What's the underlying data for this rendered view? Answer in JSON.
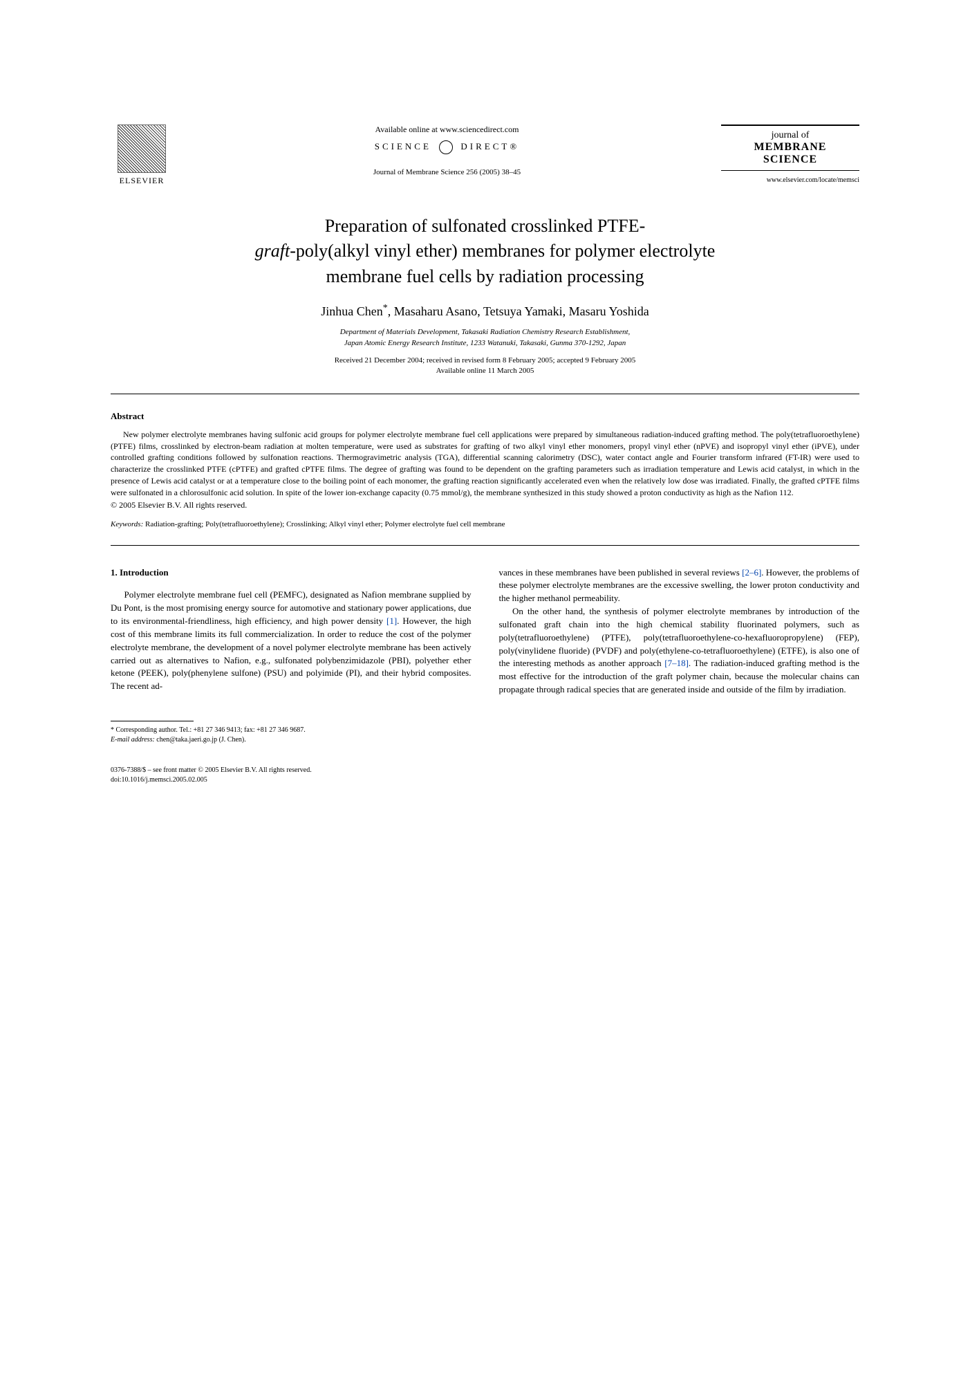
{
  "header": {
    "elsevier": "ELSEVIER",
    "available": "Available online at www.sciencedirect.com",
    "science_direct": "SCIENCE",
    "science_direct2": "DIRECT®",
    "citation": "Journal of Membrane Science 256 (2005) 38–45",
    "journal_small": "journal of",
    "journal_big1": "MEMBRANE",
    "journal_big2": "SCIENCE",
    "journal_url": "www.elsevier.com/locate/memsci"
  },
  "title": {
    "line1": "Preparation of sulfonated crosslinked PTFE-",
    "line2_italic": "graft",
    "line2_rest": "-poly(alkyl vinyl ether) membranes for polymer electrolyte",
    "line3": "membrane fuel cells by radiation processing"
  },
  "authors": "Jinhua Chen",
  "authors_rest": ", Masaharu Asano, Tetsuya Yamaki, Masaru Yoshida",
  "star": "*",
  "affiliation": {
    "line1": "Department of Materials Development, Takasaki Radiation Chemistry Research Establishment,",
    "line2": "Japan Atomic Energy Research Institute, 1233 Watanuki, Takasaki, Gunma 370-1292, Japan"
  },
  "dates": {
    "line1": "Received 21 December 2004; received in revised form 8 February 2005; accepted 9 February 2005",
    "line2": "Available online 11 March 2005"
  },
  "abstract": {
    "heading": "Abstract",
    "text": "New polymer electrolyte membranes having sulfonic acid groups for polymer electrolyte membrane fuel cell applications were prepared by simultaneous radiation-induced grafting method. The poly(tetrafluoroethylene) (PTFE) films, crosslinked by electron-beam radiation at molten temperature, were used as substrates for grafting of two alkyl vinyl ether monomers, propyl vinyl ether (nPVE) and isopropyl vinyl ether (iPVE), under controlled grafting conditions followed by sulfonation reactions. Thermogravimetric analysis (TGA), differential scanning calorimetry (DSC), water contact angle and Fourier transform infrared (FT-IR) were used to characterize the crosslinked PTFE (cPTFE) and grafted cPTFE films. The degree of grafting was found to be dependent on the grafting parameters such as irradiation temperature and Lewis acid catalyst, in which in the presence of Lewis acid catalyst or at a temperature close to the boiling point of each monomer, the grafting reaction significantly accelerated even when the relatively low dose was irradiated. Finally, the grafted cPTFE films were sulfonated in a chlorosulfonic acid solution. In spite of the lower ion-exchange capacity (0.75 mmol/g), the membrane synthesized in this study showed a proton conductivity as high as the Nafion 112.",
    "copyright": "© 2005 Elsevier B.V. All rights reserved."
  },
  "keywords": {
    "label": "Keywords:",
    "text": " Radiation-grafting; Poly(tetrafluoroethylene); Crosslinking; Alkyl vinyl ether; Polymer electrolyte fuel cell membrane"
  },
  "section1": {
    "heading": "1. Introduction",
    "col1_p1a": "Polymer electrolyte membrane fuel cell (PEMFC), designated as Nafion membrane supplied by Du Pont, is the most promising energy source for automotive and stationary power applications, due to its environmental-friendliness, high efficiency, and high power density ",
    "col1_ref1": "[1]",
    "col1_p1b": ". However, the high cost of this membrane limits its full commercialization. In order to reduce the cost of the polymer electrolyte membrane, the development of a novel polymer electrolyte membrane has been actively carried out as alternatives to Nafion, e.g., sulfonated polybenzimidazole (PBI), polyether ether ketone (PEEK), poly(phenylene sulfone) (PSU) and polyimide (PI), and their hybrid composites. The recent ad-",
    "col2_p1a": "vances in these membranes have been published in several reviews ",
    "col2_ref1": "[2–6]",
    "col2_p1b": ". However, the problems of these polymer electrolyte membranes are the excessive swelling, the lower proton conductivity and the higher methanol permeability.",
    "col2_p2a": "On the other hand, the synthesis of polymer electrolyte membranes by introduction of the sulfonated graft chain into the high chemical stability fluorinated polymers, such as poly(tetrafluoroethylene) (PTFE), poly(tetrafluoroethylene-",
    "col2_p2_italic": "co",
    "col2_p2b": "-hexafluoropropylene) (FEP), poly(vinylidene fluoride) (PVDF) and poly(ethylene-",
    "col2_p2_italic2": "co",
    "col2_p2c": "-tetrafluoroethylene) (ETFE), is also one of the interesting methods as another approach ",
    "col2_ref2": "[7–18]",
    "col2_p2d": ". The radiation-induced grafting method is the most effective for the introduction of the graft polymer chain, because the molecular chains can propagate through radical species that are generated inside and outside of the film by irradiation."
  },
  "footnote": {
    "corr": "Corresponding author. Tel.: +81 27 346 9413; fax: +81 27 346 9687.",
    "email_label": "E-mail address:",
    "email": " chen@taka.jaeri.go.jp (J. Chen)."
  },
  "footer": {
    "line1": "0376-7388/$ – see front matter © 2005 Elsevier B.V. All rights reserved.",
    "line2": "doi:10.1016/j.memsci.2005.02.005"
  }
}
